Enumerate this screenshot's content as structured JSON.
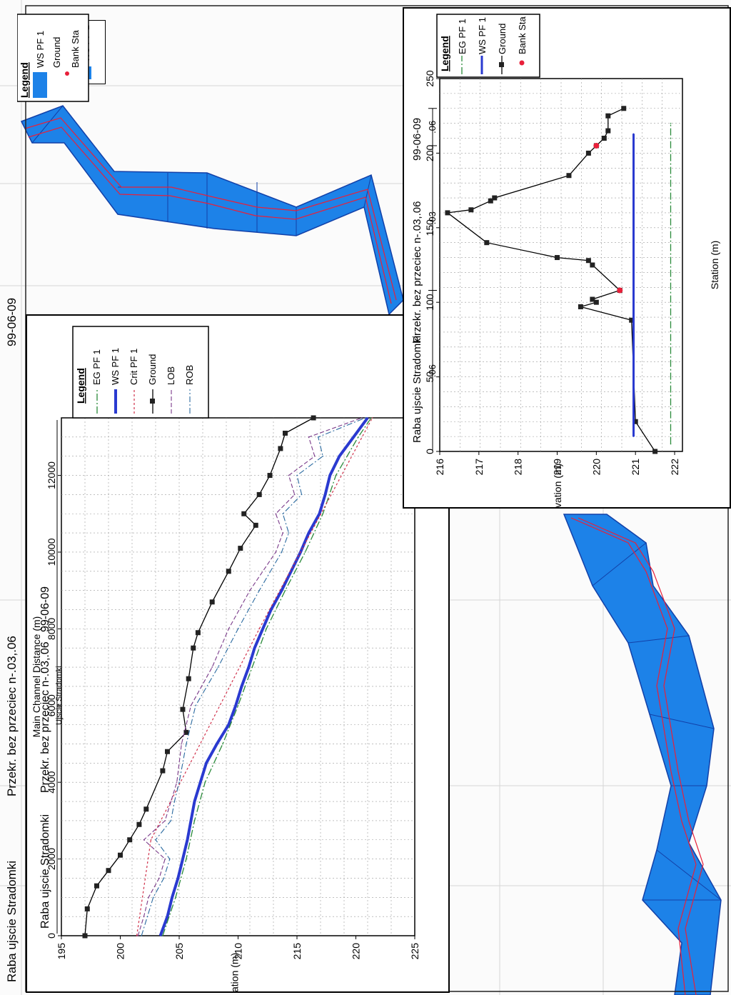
{
  "header": {
    "title_parts": [
      "Raba ujscie Stradomki",
      "Przekr. bez przeciec n-.03,.06",
      "99-06-09"
    ]
  },
  "plan_view": {
    "legend": {
      "title": "Legend",
      "items": [
        {
          "label": "WS PF 1",
          "kind": "fill",
          "color": "#1d82e8"
        },
        {
          "label": "Ground",
          "kind": "none"
        },
        {
          "label": "Bank Sta",
          "kind": "dot",
          "color": "#e8203a"
        }
      ]
    },
    "colors": {
      "water": "#1d82e8",
      "bank": "#e8203a",
      "edge": "#1240a8"
    }
  },
  "profile_panel": {
    "header_parts": [
      "Raba ujscie Stradomki",
      "Przekr. bez przeciec n-.03,.06",
      "99-06-09"
    ],
    "reach_label": "Ujscie Stradomki",
    "legend": {
      "title": "Legend",
      "items": [
        {
          "label": "EG  PF 1",
          "kind": "dashdot",
          "color": "#2a8a3a"
        },
        {
          "label": "WS  PF 1",
          "kind": "thick",
          "color": "#2a3ad0"
        },
        {
          "label": "Crit  PF 1",
          "kind": "dashred",
          "color": "#d0304a"
        },
        {
          "label": "Ground",
          "kind": "square",
          "color": "#000000"
        },
        {
          "label": "LOB",
          "kind": "dash",
          "color": "#7a3a8a"
        },
        {
          "label": "ROB",
          "kind": "dashdot2",
          "color": "#2a6aa0"
        }
      ]
    }
  },
  "section_panel": {
    "header_parts": [
      "Raba ujscie Stradomki",
      "Przekr. bez przeciec n-.03,.06",
      "99-06-09"
    ],
    "n_labels": [
      ".06",
      ".03",
      ".06"
    ],
    "legend": {
      "title": "Legend",
      "items": [
        {
          "label": "EG PF 1",
          "kind": "dashdot",
          "color": "#2a8a3a"
        },
        {
          "label": "WS PF 1",
          "kind": "thick",
          "color": "#2a3ad0"
        },
        {
          "label": "Ground",
          "kind": "square",
          "color": "#000000"
        },
        {
          "label": "Bank Sta",
          "kind": "dot",
          "color": "#e8203a"
        }
      ]
    }
  },
  "chart_data": [
    {
      "type": "line",
      "title": "",
      "xlabel": "Main Channel Distance (m)",
      "ylabel": "Elevation (m)",
      "xlim": [
        0,
        13500
      ],
      "ylim": [
        195,
        225
      ],
      "xticks": [
        0,
        2000,
        4000,
        6000,
        8000,
        10000,
        12000
      ],
      "yticks": [
        195,
        200,
        205,
        210,
        215,
        220,
        225
      ],
      "grid": true,
      "legend_position": "top-right",
      "series": [
        {
          "name": "Ground",
          "x": [
            0,
            700,
            1300,
            1700,
            2100,
            2500,
            2900,
            3300,
            4300,
            4800,
            5300,
            5900,
            6700,
            7500,
            7900,
            8700,
            9500,
            10100,
            10700,
            11000,
            11500,
            12000,
            12700,
            13100,
            13500
          ],
          "y": [
            197.0,
            197.2,
            198.0,
            199.0,
            200.0,
            200.8,
            201.6,
            202.2,
            203.6,
            204.0,
            205.6,
            205.3,
            205.8,
            206.2,
            206.6,
            207.8,
            209.2,
            210.2,
            211.5,
            210.5,
            211.8,
            212.7,
            213.6,
            214.0,
            216.4
          ]
        },
        {
          "name": "WS  PF 1",
          "x": [
            0,
            500,
            1000,
            1500,
            2000,
            2500,
            3000,
            3500,
            4000,
            4500,
            5000,
            5500,
            6000,
            6500,
            7000,
            7500,
            8000,
            8500,
            9000,
            9500,
            10000,
            10500,
            11000,
            11500,
            12000,
            12500,
            13000,
            13500
          ],
          "y": [
            203.4,
            204.0,
            204.4,
            204.9,
            205.3,
            205.7,
            206.0,
            206.3,
            206.8,
            207.3,
            208.2,
            209.2,
            209.8,
            210.3,
            210.9,
            211.4,
            212.1,
            212.8,
            213.7,
            214.5,
            215.3,
            216.0,
            216.9,
            217.4,
            217.8,
            218.6,
            219.8,
            221.0
          ]
        },
        {
          "name": "EG  PF 1",
          "x": [
            0,
            1000,
            2000,
            3000,
            4000,
            5000,
            6000,
            7000,
            8000,
            9000,
            10000,
            11000,
            12000,
            13000,
            13500
          ],
          "y": [
            203.6,
            204.7,
            205.6,
            206.3,
            207.2,
            208.7,
            210.0,
            211.2,
            212.4,
            214.0,
            215.7,
            217.2,
            218.3,
            220.2,
            221.3
          ]
        },
        {
          "name": "Crit  PF 1",
          "x": [
            0,
            2500,
            8000,
            13500
          ],
          "y": [
            201.4,
            202.6,
            211.8,
            221.4
          ]
        },
        {
          "name": "LOB",
          "x": [
            0,
            500,
            1000,
            1500,
            2000,
            2500,
            3000,
            3500,
            4000,
            5000,
            6000,
            7000,
            8000,
            9000,
            10000,
            10500,
            11000,
            11500,
            12000,
            12500,
            13000,
            13500
          ],
          "y": [
            201.5,
            202.0,
            202.4,
            203.3,
            203.8,
            202.0,
            203.8,
            204.3,
            204.8,
            205.2,
            206.0,
            207.8,
            209.2,
            211.0,
            213.2,
            213.8,
            213.2,
            214.8,
            214.3,
            216.5,
            216.0,
            220.5
          ]
        },
        {
          "name": "ROB",
          "x": [
            0,
            500,
            1000,
            1500,
            2000,
            2500,
            3000,
            3500,
            4000,
            5000,
            6000,
            7000,
            8000,
            9000,
            10000,
            10500,
            11000,
            11500,
            12000,
            12500,
            13000,
            13500
          ],
          "y": [
            201.8,
            202.3,
            202.8,
            203.7,
            204.2,
            203.0,
            204.3,
            204.6,
            205.0,
            205.6,
            206.4,
            208.3,
            210.0,
            211.8,
            213.7,
            214.3,
            213.8,
            215.4,
            215.0,
            217.2,
            216.8,
            220.8
          ]
        }
      ]
    },
    {
      "type": "line",
      "title": "",
      "xlabel": "Station (m)",
      "ylabel": "Elevation (m)",
      "xlim": [
        0,
        250
      ],
      "ylim": [
        216,
        222.2
      ],
      "xticks": [
        0,
        50,
        100,
        150,
        200,
        250
      ],
      "yticks": [
        216,
        217,
        218,
        219,
        220,
        221,
        222
      ],
      "grid": true,
      "legend_position": "top-right",
      "series": [
        {
          "name": "Ground",
          "x": [
            0,
            20,
            88,
            97,
            100,
            102,
            108,
            125,
            128,
            130,
            140,
            160,
            162,
            168,
            170,
            185,
            200,
            205,
            210,
            215,
            225,
            230
          ],
          "y": [
            221.5,
            221.0,
            220.9,
            219.6,
            220.0,
            219.9,
            220.6,
            219.9,
            219.8,
            219.0,
            217.2,
            216.2,
            216.8,
            217.3,
            217.4,
            219.3,
            219.8,
            220.0,
            220.2,
            220.3,
            220.3,
            220.7
          ]
        },
        {
          "name": "WS PF 1",
          "x": [
            10,
            213
          ],
          "y": [
            220.95,
            220.95
          ]
        },
        {
          "name": "EG PF 1",
          "x": [
            5,
            220
          ],
          "y": [
            221.9,
            221.9
          ]
        },
        {
          "name": "Bank Sta",
          "x": [
            108,
            205
          ],
          "y": [
            220.6,
            220.0
          ]
        }
      ]
    }
  ]
}
